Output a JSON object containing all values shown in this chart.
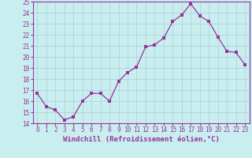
{
  "x": [
    0,
    1,
    2,
    3,
    4,
    5,
    6,
    7,
    8,
    9,
    10,
    11,
    12,
    13,
    14,
    15,
    16,
    17,
    18,
    19,
    20,
    21,
    22,
    23
  ],
  "y": [
    16.7,
    15.5,
    15.2,
    14.3,
    14.6,
    16.0,
    16.7,
    16.7,
    16.0,
    17.8,
    18.6,
    19.1,
    20.9,
    21.1,
    21.7,
    23.2,
    23.8,
    24.8,
    23.7,
    23.2,
    21.8,
    20.5,
    20.4,
    19.3
  ],
  "line_color": "#993399",
  "marker": "s",
  "marker_size": 2.5,
  "bg_color": "#c8eef0",
  "grid_color": "#b0cdd0",
  "xlabel": "Windchill (Refroidissement éolien,°C)",
  "xlabel_color": "#993399",
  "tick_color": "#993399",
  "spine_color": "#993399",
  "ylim": [
    14,
    25
  ],
  "xlim": [
    -0.5,
    23.5
  ],
  "yticks": [
    14,
    15,
    16,
    17,
    18,
    19,
    20,
    21,
    22,
    23,
    24,
    25
  ],
  "xticks": [
    0,
    1,
    2,
    3,
    4,
    5,
    6,
    7,
    8,
    9,
    10,
    11,
    12,
    13,
    14,
    15,
    16,
    17,
    18,
    19,
    20,
    21,
    22,
    23
  ],
  "font_family": "monospace",
  "tick_fontsize": 5.5,
  "xlabel_fontsize": 6.5
}
